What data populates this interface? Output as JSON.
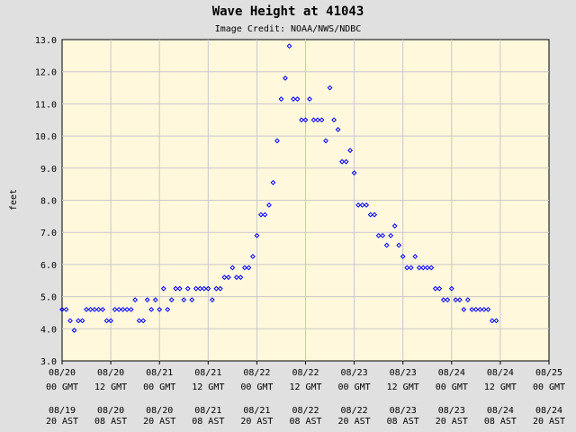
{
  "chart_data": {
    "type": "scatter",
    "title": "Wave Height at 41043",
    "subtitle": "Image Credit: NOAA/NWS/NDBC",
    "ylabel": "feet",
    "ylim": [
      3.0,
      13.0
    ],
    "yticks": [
      "3.0",
      "4.0",
      "5.0",
      "6.0",
      "7.0",
      "8.0",
      "9.0",
      "10.0",
      "11.0",
      "12.0",
      "13.0"
    ],
    "xlim_hours": [
      0,
      120
    ],
    "xticks": [
      {
        "gmt_date": "08/20",
        "gmt_time": "00 GMT",
        "ast_date": "08/19",
        "ast_time": "20 AST"
      },
      {
        "gmt_date": "08/20",
        "gmt_time": "12 GMT",
        "ast_date": "08/20",
        "ast_time": "08 AST"
      },
      {
        "gmt_date": "08/21",
        "gmt_time": "00 GMT",
        "ast_date": "08/20",
        "ast_time": "20 AST"
      },
      {
        "gmt_date": "08/21",
        "gmt_time": "12 GMT",
        "ast_date": "08/21",
        "ast_time": "08 AST"
      },
      {
        "gmt_date": "08/22",
        "gmt_time": "00 GMT",
        "ast_date": "08/21",
        "ast_time": "20 AST"
      },
      {
        "gmt_date": "08/22",
        "gmt_time": "12 GMT",
        "ast_date": "08/22",
        "ast_time": "08 AST"
      },
      {
        "gmt_date": "08/23",
        "gmt_time": "00 GMT",
        "ast_date": "08/22",
        "ast_time": "20 AST"
      },
      {
        "gmt_date": "08/23",
        "gmt_time": "12 GMT",
        "ast_date": "08/23",
        "ast_time": "08 AST"
      },
      {
        "gmt_date": "08/24",
        "gmt_time": "00 GMT",
        "ast_date": "08/23",
        "ast_time": "20 AST"
      },
      {
        "gmt_date": "08/24",
        "gmt_time": "12 GMT",
        "ast_date": "08/24",
        "ast_time": "08 AST"
      },
      {
        "gmt_date": "08/25",
        "gmt_time": "00 GMT",
        "ast_date": "08/24",
        "ast_time": "20 AST"
      }
    ],
    "grid": true,
    "colors": {
      "plot_bg": "#fff8dc",
      "page_bg": "#e0e0e0",
      "marker": "#0000ff",
      "grid": "#c8c8c8"
    },
    "points": [
      [
        0,
        4.6
      ],
      [
        1,
        4.6
      ],
      [
        2,
        4.25
      ],
      [
        3,
        3.95
      ],
      [
        4,
        4.25
      ],
      [
        5,
        4.25
      ],
      [
        6,
        4.6
      ],
      [
        7,
        4.6
      ],
      [
        8,
        4.6
      ],
      [
        9,
        4.6
      ],
      [
        10,
        4.6
      ],
      [
        11,
        4.25
      ],
      [
        12,
        4.25
      ],
      [
        13,
        4.6
      ],
      [
        14,
        4.6
      ],
      [
        15,
        4.6
      ],
      [
        16,
        4.6
      ],
      [
        17,
        4.6
      ],
      [
        18,
        4.9
      ],
      [
        19,
        4.25
      ],
      [
        20,
        4.25
      ],
      [
        21,
        4.9
      ],
      [
        22,
        4.6
      ],
      [
        23,
        4.9
      ],
      [
        24,
        4.6
      ],
      [
        25,
        5.25
      ],
      [
        26,
        4.6
      ],
      [
        27,
        4.9
      ],
      [
        28,
        5.25
      ],
      [
        29,
        5.25
      ],
      [
        30,
        4.9
      ],
      [
        31,
        5.25
      ],
      [
        32,
        4.9
      ],
      [
        33,
        5.25
      ],
      [
        34,
        5.25
      ],
      [
        35,
        5.25
      ],
      [
        36,
        5.25
      ],
      [
        37,
        4.9
      ],
      [
        38,
        5.25
      ],
      [
        39,
        5.25
      ],
      [
        40,
        5.6
      ],
      [
        41,
        5.6
      ],
      [
        42,
        5.9
      ],
      [
        43,
        5.6
      ],
      [
        44,
        5.6
      ],
      [
        45,
        5.9
      ],
      [
        46,
        5.9
      ],
      [
        47,
        6.25
      ],
      [
        48,
        6.9
      ],
      [
        49,
        7.55
      ],
      [
        50,
        7.55
      ],
      [
        51,
        7.85
      ],
      [
        52,
        8.55
      ],
      [
        53,
        9.85
      ],
      [
        54,
        11.15
      ],
      [
        55,
        11.8
      ],
      [
        56,
        12.8
      ],
      [
        57,
        11.15
      ],
      [
        58,
        11.15
      ],
      [
        59,
        10.5
      ],
      [
        60,
        10.5
      ],
      [
        61,
        11.15
      ],
      [
        62,
        10.5
      ],
      [
        63,
        10.5
      ],
      [
        64,
        10.5
      ],
      [
        65,
        9.85
      ],
      [
        66,
        11.5
      ],
      [
        67,
        10.5
      ],
      [
        68,
        10.2
      ],
      [
        69,
        9.2
      ],
      [
        70,
        9.2
      ],
      [
        71,
        9.55
      ],
      [
        72,
        8.85
      ],
      [
        73,
        7.85
      ],
      [
        74,
        7.85
      ],
      [
        75,
        7.85
      ],
      [
        76,
        7.55
      ],
      [
        77,
        7.55
      ],
      [
        78,
        6.9
      ],
      [
        79,
        6.9
      ],
      [
        80,
        6.6
      ],
      [
        81,
        6.9
      ],
      [
        82,
        7.2
      ],
      [
        83,
        6.6
      ],
      [
        84,
        6.25
      ],
      [
        85,
        5.9
      ],
      [
        86,
        5.9
      ],
      [
        87,
        6.25
      ],
      [
        88,
        5.9
      ],
      [
        89,
        5.9
      ],
      [
        90,
        5.9
      ],
      [
        91,
        5.9
      ],
      [
        92,
        5.25
      ],
      [
        93,
        5.25
      ],
      [
        94,
        4.9
      ],
      [
        95,
        4.9
      ],
      [
        96,
        5.25
      ],
      [
        97,
        4.9
      ],
      [
        98,
        4.9
      ],
      [
        99,
        4.6
      ],
      [
        100,
        4.9
      ],
      [
        101,
        4.6
      ],
      [
        102,
        4.6
      ],
      [
        103,
        4.6
      ],
      [
        104,
        4.6
      ],
      [
        105,
        4.6
      ],
      [
        106,
        4.25
      ],
      [
        107,
        4.25
      ]
    ]
  }
}
